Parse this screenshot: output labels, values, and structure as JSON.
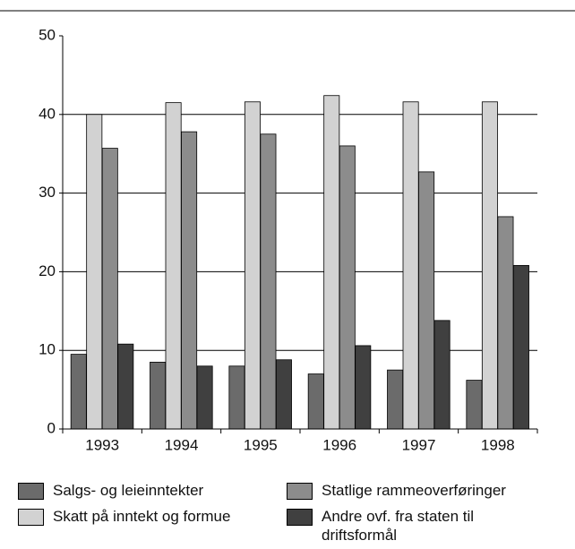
{
  "chart_data": {
    "type": "bar",
    "categories": [
      "1993",
      "1994",
      "1995",
      "1996",
      "1997",
      "1998"
    ],
    "series": [
      {
        "name": "Salgs- og leieinntekter",
        "color": "#6b6b6b",
        "values": [
          9.5,
          8.5,
          8,
          7,
          7.5,
          6.2
        ]
      },
      {
        "name": "Skatt på inntekt og formue",
        "color": "#d2d2d2",
        "values": [
          40,
          41.5,
          41.6,
          42.4,
          41.6,
          41.6
        ]
      },
      {
        "name": "Statlige rammeoverføringer",
        "color": "#8c8c8c",
        "values": [
          35.7,
          37.8,
          37.5,
          36,
          32.7,
          27
        ]
      },
      {
        "name": "Andre ovf. fra staten til driftsformål",
        "color": "#404040",
        "values": [
          10.8,
          8,
          8.8,
          10.6,
          13.8,
          20.8
        ]
      }
    ],
    "ylim": [
      0,
      50
    ],
    "yticks": [
      0,
      10,
      20,
      30,
      40,
      50
    ],
    "grid": true
  }
}
